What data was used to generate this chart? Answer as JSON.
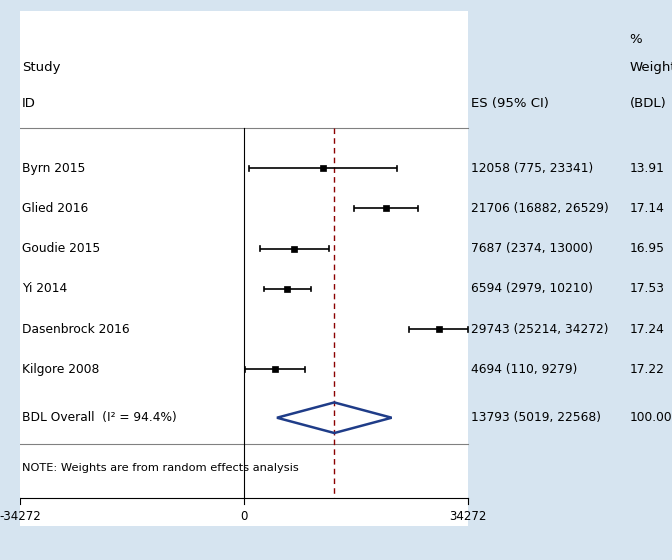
{
  "title_percent": "%",
  "title_study": "Study",
  "title_id": "ID",
  "title_es": "ES (95% CI)",
  "title_weight": "Weight",
  "title_bdl": "(BDL)",
  "studies": [
    {
      "label": "Byrn 2015",
      "es": 12058,
      "ci_lo": 775,
      "ci_hi": 23341,
      "weight": "13.91",
      "es_text": "12058 (775, 23341)"
    },
    {
      "label": "Glied 2016",
      "es": 21706,
      "ci_lo": 16882,
      "ci_hi": 26529,
      "weight": "17.14",
      "es_text": "21706 (16882, 26529)"
    },
    {
      "label": "Goudie 2015",
      "es": 7687,
      "ci_lo": 2374,
      "ci_hi": 13000,
      "weight": "16.95",
      "es_text": "7687 (2374, 13000)"
    },
    {
      "label": "Yi 2014",
      "es": 6594,
      "ci_lo": 2979,
      "ci_hi": 10210,
      "weight": "17.53",
      "es_text": "6594 (2979, 10210)"
    },
    {
      "label": "Dasenbrock 2016",
      "es": 29743,
      "ci_lo": 25214,
      "ci_hi": 34272,
      "weight": "17.24",
      "es_text": "29743 (25214, 34272)"
    },
    {
      "label": "Kilgore 2008",
      "es": 4694,
      "ci_lo": 110,
      "ci_hi": 9279,
      "weight": "17.22",
      "es_text": "4694 (110, 9279)"
    }
  ],
  "overall": {
    "label": "BDL Overall  (I² = 94.4%)",
    "es": 13793,
    "ci_lo": 5019,
    "ci_hi": 22568,
    "weight": "100.00",
    "es_text": "13793 (5019, 22568)"
  },
  "note": "NOTE: Weights are from random effects analysis",
  "xmin": -34272,
  "xmax": 34272,
  "xticks": [
    -34272,
    0,
    34272
  ],
  "ref_line": 13793,
  "bg_color": "#d6e4f0",
  "plot_bg": "#ffffff",
  "diamond_color": "#1f3c88",
  "ci_line_color": "#000000",
  "ref_line_color": "#8b0000"
}
